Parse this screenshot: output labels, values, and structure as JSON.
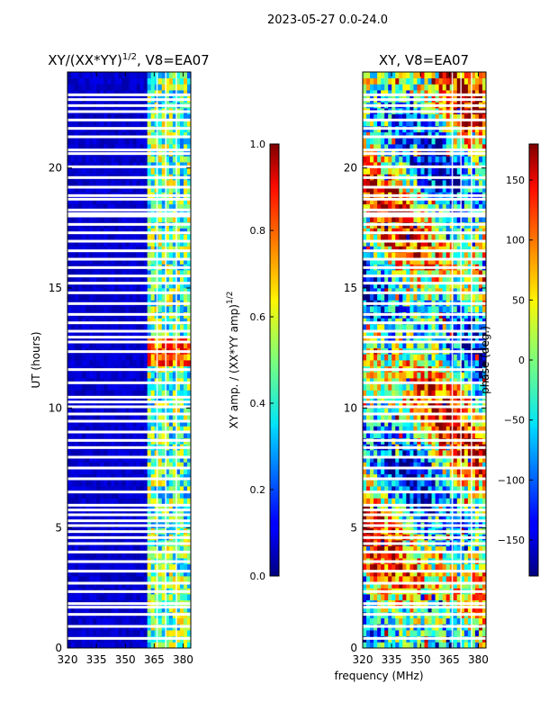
{
  "figure": {
    "suptitle": "2023-05-27 0.0-24.0",
    "xlabel": "frequency (MHz)",
    "ylabel": "UT (hours)"
  },
  "chart_data": [
    {
      "type": "heatmap",
      "title": "XY/(XX*YY)",
      "title_exp": "1/2",
      "title_tail": ", V8=EA07",
      "quantity": "normalized XY amplitude",
      "x_ticks": [
        320,
        335,
        350,
        365,
        380
      ],
      "y_ticks": [
        0,
        5,
        10,
        15,
        20
      ],
      "xlim": [
        320,
        384
      ],
      "ylim": [
        0,
        24
      ],
      "colorbar": {
        "label": "XY amp. / (XX*YY amp)",
        "label_exp": "1/2",
        "ticks": [
          "0.0",
          "0.2",
          "0.4",
          "0.6",
          "0.8",
          "1.0"
        ],
        "range": [
          0,
          1
        ]
      }
    },
    {
      "type": "heatmap",
      "title": "XY, V8=EA07",
      "quantity": "XY phase",
      "x_ticks": [
        320,
        335,
        350,
        365,
        380
      ],
      "y_ticks": [
        0,
        5,
        10,
        15,
        20
      ],
      "xlim": [
        320,
        384
      ],
      "ylim": [
        0,
        24
      ],
      "colorbar": {
        "label": "phase (deg.)",
        "ticks": [
          "150",
          "100",
          "50",
          "0",
          "−50",
          "−100",
          "−150"
        ],
        "tick_values": [
          150,
          100,
          50,
          0,
          -50,
          -100,
          -150
        ],
        "range": [
          -180,
          180
        ]
      }
    }
  ],
  "flagged_hours": [
    0.4,
    0.9,
    1.4,
    1.7,
    1.85,
    2.35,
    2.7,
    3.2,
    3.6,
    4.0,
    4.35,
    4.6,
    4.85,
    5.1,
    5.3,
    5.55,
    5.75,
    5.95,
    6.5,
    7.05,
    7.5,
    7.95,
    8.35,
    8.65,
    9.0,
    9.45,
    9.75,
    10.05,
    10.25,
    10.45,
    11.05,
    11.6,
    12.35,
    12.75,
    12.95,
    13.2,
    13.55,
    13.9,
    14.35,
    14.8,
    15.2,
    15.5,
    15.85,
    16.2,
    16.55,
    16.95,
    17.3,
    17.65,
    18.0,
    18.1,
    18.25,
    18.7,
    18.85,
    19.2,
    19.6,
    20.05,
    20.6,
    20.75,
    21.3,
    21.65,
    22.0,
    22.35,
    22.6,
    22.85,
    23.05
  ]
}
